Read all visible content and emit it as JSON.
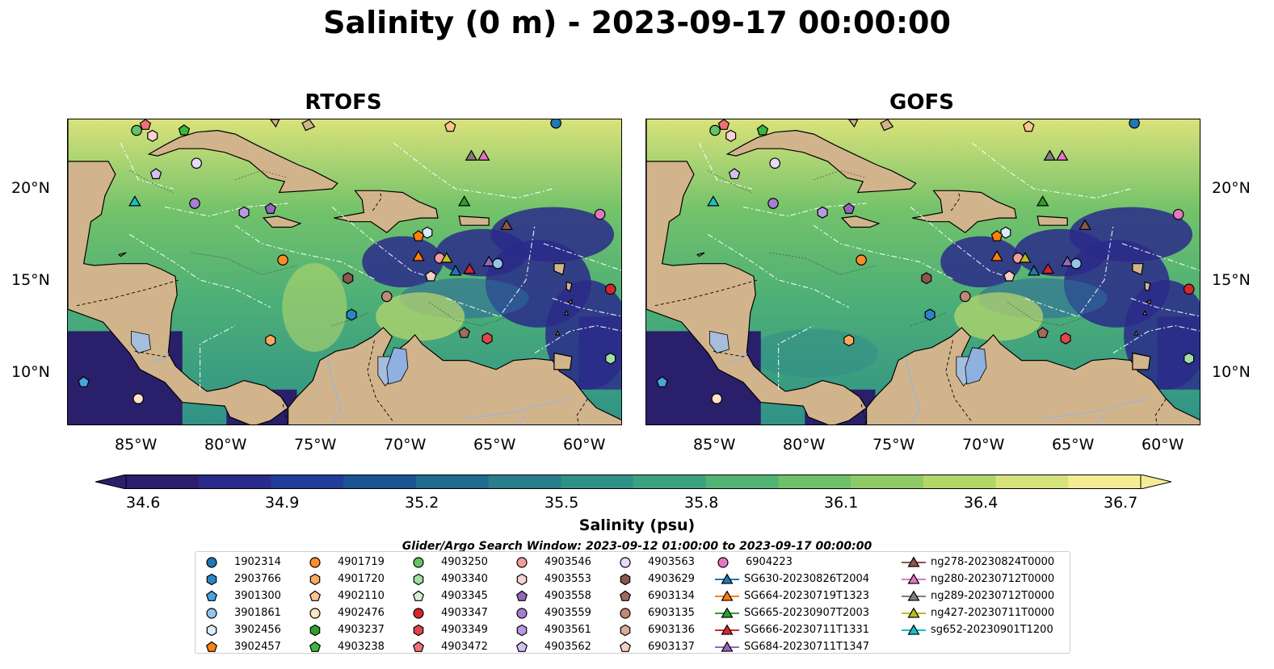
{
  "title": "Salinity (0 m) - 2023-09-17 00:00:00",
  "panels": [
    {
      "title": "RTOFS"
    },
    {
      "title": "GOFS"
    }
  ],
  "lat_labels": [
    "20°N",
    "15°N",
    "10°N"
  ],
  "lon_labels": [
    "85°W",
    "80°W",
    "75°W",
    "70°W",
    "65°W",
    "60°W"
  ],
  "colorbar": {
    "label": "Salinity (psu)",
    "ticks": [
      "34.6",
      "34.9",
      "35.2",
      "35.5",
      "35.8",
      "36.1",
      "36.4",
      "36.7"
    ],
    "colors": [
      "#2b1e6a",
      "#2a2a8a",
      "#213c99",
      "#1b5493",
      "#206b8e",
      "#287e8a",
      "#2f9287",
      "#3aa27f",
      "#52b374",
      "#6fc06a",
      "#8ecb64",
      "#b2d767",
      "#d6e27a",
      "#f3ec95"
    ]
  },
  "search_window": "Glider/Argo Search Window: 2023-09-12 01:00:00 to 2023-09-17 00:00:00",
  "legend": [
    [
      {
        "label": "1902314",
        "marker": "circle",
        "color": "#1f77b4"
      },
      {
        "label": "2903766",
        "marker": "hexagon",
        "color": "#2a85c8"
      },
      {
        "label": "3901300",
        "marker": "pentagon",
        "color": "#4aa3dc"
      },
      {
        "label": "3901861",
        "marker": "circle",
        "color": "#93c4ec"
      },
      {
        "label": "3902456",
        "marker": "hexagon",
        "color": "#d9ecfb"
      },
      {
        "label": "3902457",
        "marker": "pentagon",
        "color": "#ff7f0e"
      }
    ],
    [
      {
        "label": "4901719",
        "marker": "circle",
        "color": "#ff8c2a"
      },
      {
        "label": "4901720",
        "marker": "hexagon",
        "color": "#ffa862"
      },
      {
        "label": "4902110",
        "marker": "pentagon",
        "color": "#ffc48e"
      },
      {
        "label": "4902476",
        "marker": "circle",
        "color": "#ffe3c4"
      },
      {
        "label": "4903237",
        "marker": "hexagon",
        "color": "#2ca02c"
      },
      {
        "label": "4903238",
        "marker": "pentagon",
        "color": "#3cb73c"
      }
    ],
    [
      {
        "label": "4903250",
        "marker": "circle",
        "color": "#66c266"
      },
      {
        "label": "4903340",
        "marker": "hexagon",
        "color": "#a3dea3"
      },
      {
        "label": "4903345",
        "marker": "pentagon",
        "color": "#d6f2d0"
      },
      {
        "label": "4903347",
        "marker": "circle",
        "color": "#d62728"
      },
      {
        "label": "4903349",
        "marker": "hexagon",
        "color": "#e0464a"
      },
      {
        "label": "4903472",
        "marker": "pentagon",
        "color": "#f0707a"
      }
    ],
    [
      {
        "label": "4903546",
        "marker": "circle",
        "color": "#f49c9c"
      },
      {
        "label": "4903553",
        "marker": "hexagon",
        "color": "#fbd2d2"
      },
      {
        "label": "4903558",
        "marker": "pentagon",
        "color": "#9467bd"
      },
      {
        "label": "4903559",
        "marker": "circle",
        "color": "#a57fd0"
      },
      {
        "label": "4903561",
        "marker": "hexagon",
        "color": "#b89ae0"
      },
      {
        "label": "4903562",
        "marker": "pentagon",
        "color": "#d3bff0"
      }
    ],
    [
      {
        "label": "4903563",
        "marker": "circle",
        "color": "#e8d9fb"
      },
      {
        "label": "4903629",
        "marker": "hexagon",
        "color": "#8c564b"
      },
      {
        "label": "6903134",
        "marker": "pentagon",
        "color": "#a06a5c"
      },
      {
        "label": "6903135",
        "marker": "circle",
        "color": "#c08a78"
      },
      {
        "label": "6903136",
        "marker": "hexagon",
        "color": "#dcaa9a"
      },
      {
        "label": "6903137",
        "marker": "pentagon",
        "color": "#f3d0c4"
      }
    ],
    [
      {
        "label": "6904223",
        "marker": "circle",
        "color": "#e377c2"
      },
      {
        "label": "SG630-20230826T2004",
        "marker": "triangle-line",
        "color": "#1f77b4"
      },
      {
        "label": "SG664-20230719T1323",
        "marker": "triangle-line",
        "color": "#ff7f0e"
      },
      {
        "label": "SG665-20230907T2003",
        "marker": "triangle-line",
        "color": "#2ca02c"
      },
      {
        "label": "SG666-20230711T1331",
        "marker": "triangle-line",
        "color": "#d62728"
      },
      {
        "label": "SG684-20230711T1347",
        "marker": "triangle-line",
        "color": "#9467bd"
      }
    ],
    [
      {
        "label": "ng278-20230824T0000",
        "marker": "triangle-line",
        "color": "#8c564b"
      },
      {
        "label": "ng280-20230712T0000",
        "marker": "triangle-line",
        "color": "#e377c2"
      },
      {
        "label": "ng289-20230712T0000",
        "marker": "triangle-line",
        "color": "#7f7f7f"
      },
      {
        "label": "ng427-20230711T0000",
        "marker": "triangle-line",
        "color": "#bcbd22"
      },
      {
        "label": "sg652-20230901T1200",
        "marker": "triangle-line",
        "color": "#17becf"
      }
    ]
  ],
  "map_markers": [
    {
      "id": "4903250",
      "lon": -85.6,
      "lat": 23.2,
      "marker": "circle",
      "color": "#66c266"
    },
    {
      "id": "4903472",
      "lon": -85.1,
      "lat": 23.5,
      "marker": "pentagon",
      "color": "#f0707a"
    },
    {
      "id": "4903553",
      "lon": -84.7,
      "lat": 22.9,
      "marker": "hexagon",
      "color": "#fbd2d2"
    },
    {
      "id": "4903238",
      "lon": -82.9,
      "lat": 23.2,
      "marker": "pentagon",
      "color": "#3cb73c"
    },
    {
      "id": "4902110",
      "lon": -67.8,
      "lat": 23.4,
      "marker": "pentagon",
      "color": "#ffc48e"
    },
    {
      "id": "1902314",
      "lon": -61.8,
      "lat": 23.6,
      "marker": "circle",
      "color": "#1f77b4"
    },
    {
      "id": "4903562",
      "lon": -84.5,
      "lat": 20.8,
      "marker": "pentagon",
      "color": "#d3bff0"
    },
    {
      "id": "4903563",
      "lon": -82.2,
      "lat": 21.4,
      "marker": "circle",
      "color": "#e8d9fb"
    },
    {
      "id": "ng289-20230712T0000",
      "lon": -66.6,
      "lat": 21.8,
      "marker": "triangle",
      "color": "#7f7f7f"
    },
    {
      "id": "ng280-20230712T0000",
      "lon": -65.9,
      "lat": 21.8,
      "marker": "triangle",
      "color": "#e377c2"
    },
    {
      "id": "sg652-20230901T1200",
      "lon": -85.7,
      "lat": 19.3,
      "marker": "triangle",
      "color": "#17becf"
    },
    {
      "id": "4903559",
      "lon": -82.3,
      "lat": 19.2,
      "marker": "circle",
      "color": "#a57fd0"
    },
    {
      "id": "4903561",
      "lon": -79.5,
      "lat": 18.7,
      "marker": "hexagon",
      "color": "#b89ae0"
    },
    {
      "id": "4903558",
      "lon": -78.0,
      "lat": 18.9,
      "marker": "pentagon",
      "color": "#9467bd"
    },
    {
      "id": "SG665-20230907T2003",
      "lon": -67.0,
      "lat": 19.3,
      "marker": "triangle",
      "color": "#2ca02c"
    },
    {
      "id": "6904223",
      "lon": -59.3,
      "lat": 18.6,
      "marker": "circle",
      "color": "#e377c2"
    },
    {
      "id": "ng278-20230824T0000",
      "lon": -64.6,
      "lat": 18.0,
      "marker": "triangle",
      "color": "#8c564b"
    },
    {
      "id": "3902456",
      "lon": -69.1,
      "lat": 17.6,
      "marker": "hexagon",
      "color": "#d9ecfb"
    },
    {
      "id": "3902457",
      "lon": -69.6,
      "lat": 17.4,
      "marker": "pentagon",
      "color": "#ff7f0e"
    },
    {
      "id": "SG664-20230719T1323",
      "lon": -69.6,
      "lat": 16.3,
      "marker": "triangle",
      "color": "#ff7f0e"
    },
    {
      "id": "4903546",
      "lon": -68.4,
      "lat": 16.2,
      "marker": "circle",
      "color": "#f49c9c"
    },
    {
      "id": "ng427-20230711T0000",
      "lon": -68.0,
      "lat": 16.2,
      "marker": "triangle",
      "color": "#bcbd22"
    },
    {
      "id": "4901719",
      "lon": -77.3,
      "lat": 16.1,
      "marker": "circle",
      "color": "#ff8c2a"
    },
    {
      "id": "SG684-20230711T1347",
      "lon": -65.6,
      "lat": 16.0,
      "marker": "triangle",
      "color": "#9467bd"
    },
    {
      "id": "3901861",
      "lon": -65.1,
      "lat": 15.9,
      "marker": "circle",
      "color": "#93c4ec"
    },
    {
      "id": "SG630-20230826T2004",
      "lon": -67.5,
      "lat": 15.5,
      "marker": "triangle",
      "color": "#1f77b4"
    },
    {
      "id": "SG666-20230711T1331",
      "lon": -66.7,
      "lat": 15.6,
      "marker": "triangle",
      "color": "#d62728"
    },
    {
      "id": "6903137",
      "lon": -68.9,
      "lat": 15.2,
      "marker": "pentagon",
      "color": "#f3d0c4"
    },
    {
      "id": "4903629",
      "lon": -73.6,
      "lat": 15.1,
      "marker": "hexagon",
      "color": "#8c564b"
    },
    {
      "id": "4903347",
      "lon": -58.7,
      "lat": 14.5,
      "marker": "circle",
      "color": "#d62728"
    },
    {
      "id": "6903135",
      "lon": -71.4,
      "lat": 14.1,
      "marker": "circle",
      "color": "#c08a78"
    },
    {
      "id": "2903766",
      "lon": -73.4,
      "lat": 13.1,
      "marker": "hexagon",
      "color": "#2a85c8"
    },
    {
      "id": "6903134",
      "lon": -67.0,
      "lat": 12.1,
      "marker": "pentagon",
      "color": "#a06a5c"
    },
    {
      "id": "4903349",
      "lon": -65.7,
      "lat": 11.8,
      "marker": "hexagon",
      "color": "#e0464a"
    },
    {
      "id": "4901720",
      "lon": -78.0,
      "lat": 11.7,
      "marker": "hexagon",
      "color": "#ffa862"
    },
    {
      "id": "4903340",
      "lon": -58.7,
      "lat": 10.7,
      "marker": "hexagon",
      "color": "#a3dea3"
    },
    {
      "id": "3901300",
      "lon": -88.6,
      "lat": 9.4,
      "marker": "pentagon",
      "color": "#4aa3dc"
    },
    {
      "id": "4902476",
      "lon": -85.5,
      "lat": 8.5,
      "marker": "circle",
      "color": "#ffe3c4"
    }
  ]
}
